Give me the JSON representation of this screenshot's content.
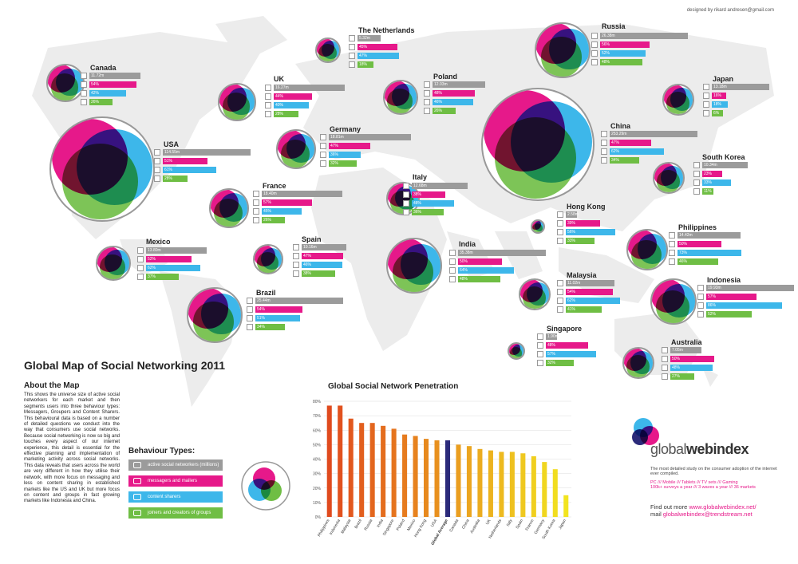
{
  "credit": "designed by rikard andresen@gmail.com",
  "title": "Global Map of Social Networking 2011",
  "about": {
    "heading": "About the Map",
    "text": "This shows the universe size of active social networkers for each market and then segments users into three behaviour types: Messagers, Groupers and Content Sharers. This behavioural data is based on a number of detailed questions we conduct into the way that consumers use social networks. Because social networking is now so big and touches every aspect of our internet experience, this detail is essential for the effective planning and implementation of marketing activity across social networks. This data reveals that users across the world are very different in how they utilise their network, with more focus on messaging and less on content sharing in established markets like the US and UK but more focus on content and groups in fast growing markets like Indonesia and China."
  },
  "behaviour": {
    "heading": "Behaviour Types:",
    "items": [
      {
        "label": "active social networkers (millions)",
        "color": "#9b9b9b",
        "icon": "globe-icon"
      },
      {
        "label": "messagers and mailers",
        "color": "#e6198a",
        "icon": "message-icon"
      },
      {
        "label": "content sharers",
        "color": "#3db7ea",
        "icon": "share-icon"
      },
      {
        "label": "joiners and creators of groups",
        "color": "#6fbe44",
        "icon": "group-icon"
      }
    ]
  },
  "countries": [
    {
      "name": "Canada",
      "users": "11.72m",
      "msg": "54%",
      "share": "42%",
      "group": "26%"
    },
    {
      "name": "The Netherlands",
      "users": "5.32m",
      "msg": "45%",
      "share": "47%",
      "group": "18%"
    },
    {
      "name": "Russia",
      "users": "26.38m",
      "msg": "56%",
      "share": "52%",
      "group": "48%"
    },
    {
      "name": "UK",
      "users": "16.27m",
      "msg": "44%",
      "share": "40%",
      "group": "28%"
    },
    {
      "name": "Poland",
      "users": "12.03m",
      "msg": "48%",
      "share": "46%",
      "group": "26%"
    },
    {
      "name": "Japan",
      "users": "13.18m",
      "msg": "16%",
      "share": "18%",
      "group": "6%"
    },
    {
      "name": "USA",
      "users": "114.55m",
      "msg": "51%",
      "share": "61%",
      "group": "28%"
    },
    {
      "name": "Germany",
      "users": "18.81m",
      "msg": "47%",
      "share": "36%",
      "group": "32%"
    },
    {
      "name": "China",
      "users": "253.29m",
      "msg": "47%",
      "share": "62%",
      "group": "34%"
    },
    {
      "name": "South Korea",
      "users": "10.34m",
      "msg": "23%",
      "share": "33%",
      "group": "11%"
    },
    {
      "name": "France",
      "users": "18.40m",
      "msg": "57%",
      "share": "45%",
      "group": "26%"
    },
    {
      "name": "Italy",
      "users": "12.68m",
      "msg": "38%",
      "share": "48%",
      "group": "36%"
    },
    {
      "name": "Hong Kong",
      "users": "2.58m",
      "msg": "39%",
      "share": "56%",
      "group": "33%"
    },
    {
      "name": "Philippines",
      "users": "14.42m",
      "msg": "50%",
      "share": "73%",
      "group": "46%"
    },
    {
      "name": "Mexico",
      "users": "13.80m",
      "msg": "52%",
      "share": "62%",
      "group": "37%"
    },
    {
      "name": "Spain",
      "users": "10.16m",
      "msg": "47%",
      "share": "46%",
      "group": "38%"
    },
    {
      "name": "India",
      "users": "35.38m",
      "msg": "50%",
      "share": "64%",
      "group": "48%"
    },
    {
      "name": "Malaysia",
      "users": "11.02m",
      "msg": "54%",
      "share": "62%",
      "group": "41%"
    },
    {
      "name": "Indonesia",
      "users": "19.93m",
      "msg": "57%",
      "share": "86%",
      "group": "52%"
    },
    {
      "name": "Brazil",
      "users": "25.44m",
      "msg": "54%",
      "share": "51%",
      "group": "34%"
    },
    {
      "name": "Singapore",
      "users": "1.90m",
      "msg": "48%",
      "share": "57%",
      "group": "32%"
    },
    {
      "name": "Australia",
      "users": "7.05m",
      "msg": "50%",
      "share": "48%",
      "group": "27%"
    }
  ],
  "chart_data": {
    "type": "bar",
    "title": "Global Social Network Penetration",
    "ylabel": "% Active Online Users",
    "ylim": [
      0,
      80
    ],
    "ytick_labels": [
      "0%",
      "10%",
      "20%",
      "30%",
      "40%",
      "50%",
      "60%",
      "70%",
      "80%"
    ],
    "grid": true,
    "categories": [
      "Philippines",
      "Indonesia",
      "Malaysia",
      "Brazil",
      "Russia",
      "India",
      "Singapore",
      "Poland",
      "Mexico",
      "Hong Kong",
      "USA",
      "Global Average",
      "Canada",
      "China",
      "Australia",
      "UK",
      "Netherlands",
      "Italy",
      "Spain",
      "France",
      "Germany",
      "South Korea",
      "Japan"
    ],
    "values": [
      77,
      77,
      68,
      65,
      65,
      63,
      61,
      57,
      56,
      54,
      53,
      53,
      50,
      49,
      47,
      46,
      45,
      45,
      44,
      42,
      38,
      33,
      15
    ],
    "highlight": "Global Average",
    "colors": {
      "start": "#e04a1e",
      "end": "#f2e41f",
      "highlight": "#2b2a7a"
    }
  },
  "brand": {
    "name_light": "global",
    "name_bold": "webindex",
    "tagline": "The most detailed study on the consumer adoption of the internet ever compiled.",
    "stats_line1": "PC /// Mobile /// Tablets /// TV sets /// Gaming",
    "stats_line2": "100k+ surveys a year /// 3 waves a year /// 36 markets",
    "find_label": "Find out more",
    "url": "www.globalwebindex.net/",
    "mail_label": "mail",
    "email": "globalwebindex@trendstream.net"
  }
}
